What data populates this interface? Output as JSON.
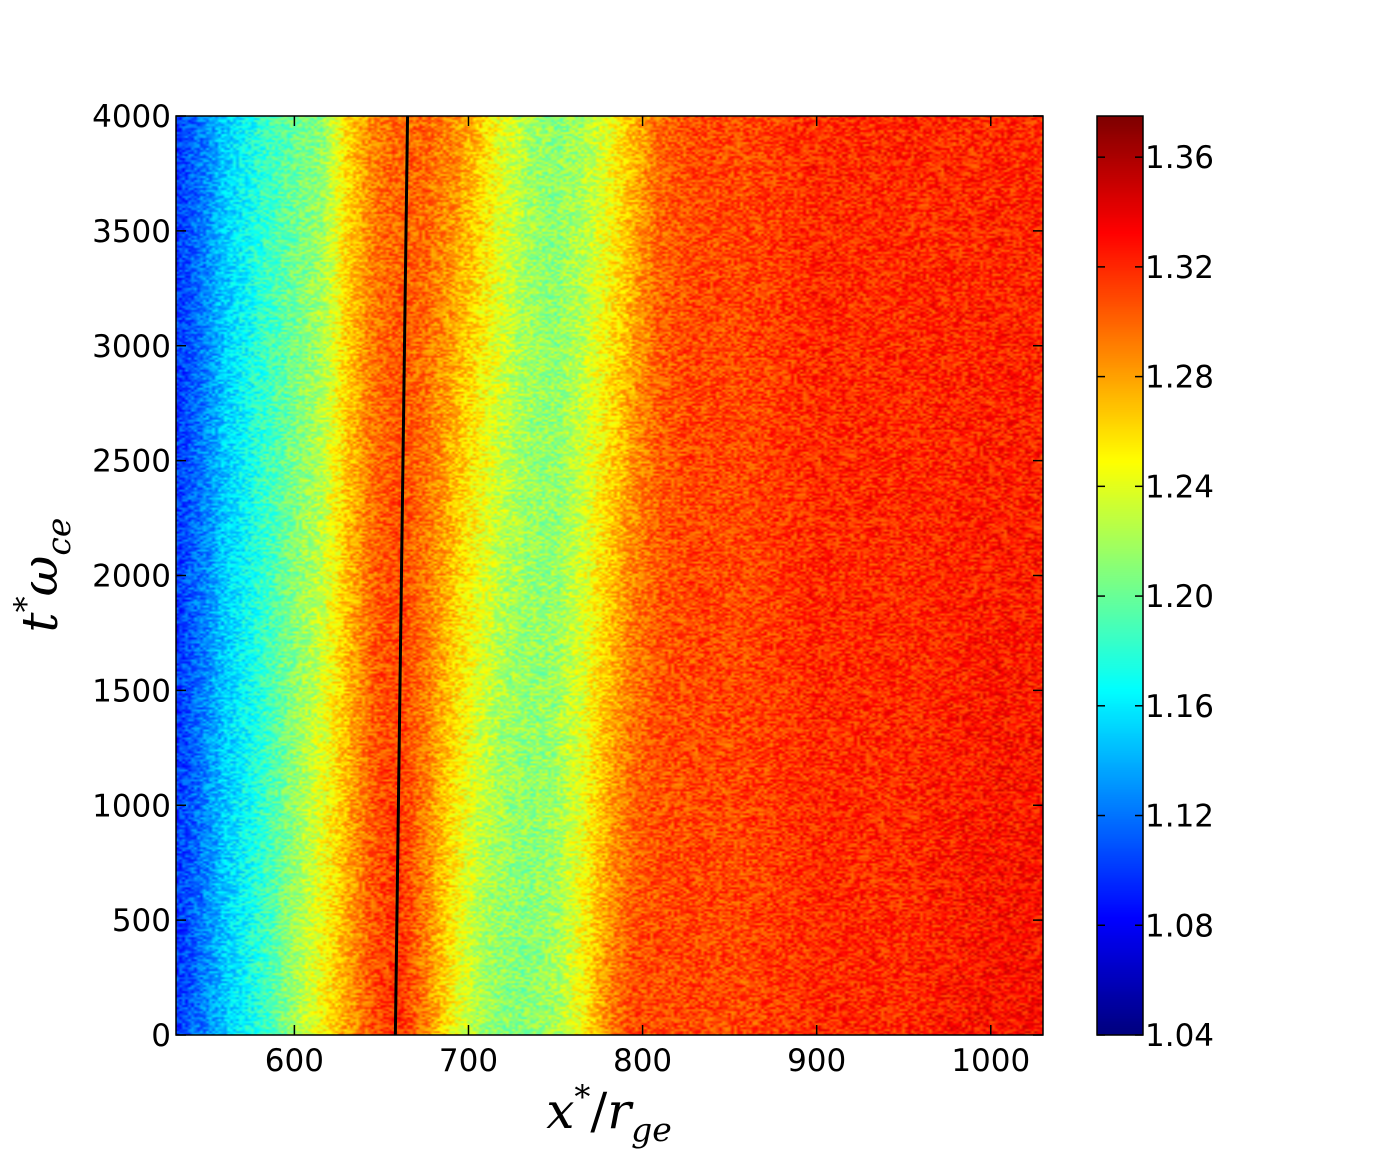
{
  "chart_data": {
    "type": "heatmap",
    "title": "",
    "xlabel": "x*/r_ge",
    "ylabel": "t*ω_ce",
    "xlim": [
      532,
      1030
    ],
    "ylim": [
      0,
      4000
    ],
    "x_ticks": [
      600,
      700,
      800,
      900,
      1000
    ],
    "y_ticks": [
      0,
      500,
      1000,
      1500,
      2000,
      2500,
      3000,
      3500,
      4000
    ],
    "x_tick_labels": [
      "600",
      "700",
      "800",
      "900",
      "1000"
    ],
    "y_tick_labels": [
      "0",
      "500",
      "1000",
      "1500",
      "2000",
      "2500",
      "3000",
      "3500",
      "4000"
    ],
    "colorbar": {
      "min": 1.04,
      "max": 1.375,
      "ticks": [
        1.04,
        1.08,
        1.12,
        1.16,
        1.2,
        1.24,
        1.28,
        1.32,
        1.36
      ],
      "tick_labels": [
        "1.04",
        "1.08",
        "1.12",
        "1.16",
        "1.20",
        "1.24",
        "1.28",
        "1.32",
        "1.36"
      ],
      "colormap": "jet",
      "placement": "right"
    },
    "field_profile": {
      "description_x": [
        532,
        545,
        560,
        580,
        600,
        615,
        630,
        645,
        660,
        675,
        690,
        705,
        720,
        735,
        750,
        765,
        780,
        795,
        810,
        830,
        860,
        900,
        950,
        1000,
        1030
      ],
      "values_t0": [
        1.1,
        1.12,
        1.15,
        1.18,
        1.22,
        1.25,
        1.28,
        1.31,
        1.32,
        1.29,
        1.25,
        1.22,
        1.21,
        1.21,
        1.22,
        1.25,
        1.29,
        1.31,
        1.31,
        1.31,
        1.31,
        1.32,
        1.32,
        1.33,
        1.33
      ],
      "values_t4000": [
        1.1,
        1.12,
        1.15,
        1.18,
        1.2,
        1.21,
        1.26,
        1.29,
        1.3,
        1.3,
        1.29,
        1.27,
        1.24,
        1.22,
        1.21,
        1.22,
        1.24,
        1.27,
        1.3,
        1.31,
        1.31,
        1.32,
        1.32,
        1.32,
        1.32
      ]
    },
    "trajectory_line": {
      "color": "#000000",
      "points": [
        {
          "x": 658,
          "t": 0
        },
        {
          "x": 665,
          "t": 4000
        }
      ]
    },
    "grid": false
  }
}
